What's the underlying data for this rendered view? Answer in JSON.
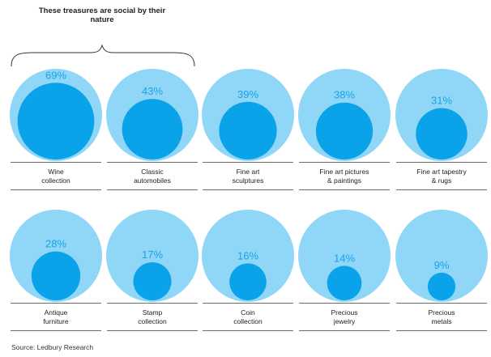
{
  "chart_data": {
    "type": "bubble-comparison",
    "title": "",
    "annotation": "These treasures are social by their nature",
    "source": "Source: Ledbury Research",
    "colors": {
      "outer": "#8fd6f7",
      "inner": "#0aa3ea",
      "label": "#1aa3e8"
    },
    "unit": "%",
    "items": [
      {
        "label_lines": [
          "Wine",
          "collection"
        ],
        "value": 69
      },
      {
        "label_lines": [
          "Classic",
          "automobiles"
        ],
        "value": 43
      },
      {
        "label_lines": [
          "Fine art",
          "sculptures"
        ],
        "value": 39
      },
      {
        "label_lines": [
          "Fine art pictures",
          "& paintings"
        ],
        "value": 38
      },
      {
        "label_lines": [
          "Fine art tapestry",
          "& rugs"
        ],
        "value": 31
      },
      {
        "label_lines": [
          "Antique",
          "furniture"
        ],
        "value": 28
      },
      {
        "label_lines": [
          "Stamp",
          "collection"
        ],
        "value": 17
      },
      {
        "label_lines": [
          "Coin",
          "collection"
        ],
        "value": 16
      },
      {
        "label_lines": [
          "Precious",
          "jewelry"
        ],
        "value": 14
      },
      {
        "label_lines": [
          "Precious",
          "metals"
        ],
        "value": 9
      }
    ]
  }
}
